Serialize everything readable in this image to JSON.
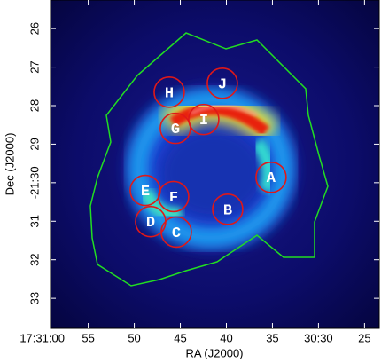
{
  "chart_data": {
    "type": "image",
    "x_label": "RA (J2000)",
    "y_label": "Dec (J2000)",
    "xlim": [
      59.1,
      23.4
    ],
    "ylim": [
      25.26,
      33.78
    ],
    "xticks": [
      {
        "value": 60,
        "label": "17:31:00"
      },
      55,
      50,
      45,
      40,
      35,
      {
        "value": 30,
        "label": "30:30"
      },
      25
    ],
    "yticks": [
      26,
      27,
      28,
      29,
      {
        "value": 30,
        "label": "-21:30"
      },
      31,
      32,
      33
    ],
    "regions": [
      {
        "label": "A",
        "x": 35.15,
        "y": 29.86
      },
      {
        "label": "B",
        "x": 39.86,
        "y": 30.69
      },
      {
        "label": "C",
        "x": 45.44,
        "y": 31.28
      },
      {
        "label": "D",
        "x": 48.23,
        "y": 31.01
      },
      {
        "label": "E",
        "x": 48.81,
        "y": 30.2
      },
      {
        "label": "F",
        "x": 45.73,
        "y": 30.36
      },
      {
        "label": "G",
        "x": 45.54,
        "y": 28.59
      },
      {
        "label": "H",
        "x": 46.21,
        "y": 27.65
      },
      {
        "label": "I",
        "x": 42.46,
        "y": 28.36
      },
      {
        "label": "J",
        "x": 40.44,
        "y": 27.42
      }
    ],
    "region_color": "#e01818",
    "contour_color": "#22dd22"
  }
}
